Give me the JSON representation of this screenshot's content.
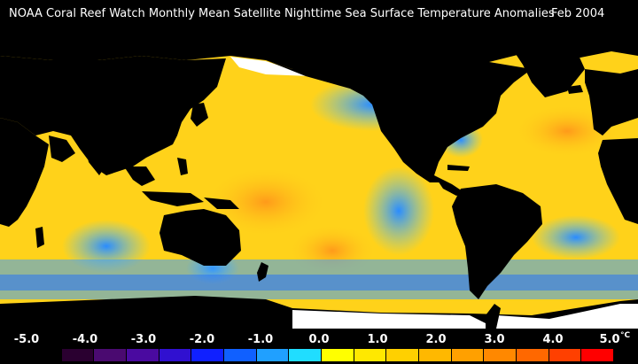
{
  "title": {
    "main": "NOAA Coral Reef Watch Monthly Mean Satellite Nighttime Sea Surface Temperature Anomalies",
    "date": "Feb 2004"
  },
  "legend": {
    "labels": [
      "-5.0",
      "-4.0",
      "-3.0",
      "-2.0",
      "-1.0",
      "0.0",
      "1.0",
      "2.0",
      "3.0",
      "4.0",
      "5.0"
    ],
    "unit": "°C",
    "colors": [
      "#000000",
      "#2a0030",
      "#4a0a70",
      "#4a0aa0",
      "#3010d0",
      "#1020ff",
      "#1060ff",
      "#20a0ff",
      "#20ddff",
      "#ffff00",
      "#ffe800",
      "#ffd000",
      "#ffb800",
      "#ffa000",
      "#ff8800",
      "#ff6800",
      "#ff4000",
      "#ff0000"
    ]
  },
  "map": {
    "land_color": "#000000",
    "ice_color": "#ffffff",
    "ocean_anomaly_dominant": "warm"
  }
}
